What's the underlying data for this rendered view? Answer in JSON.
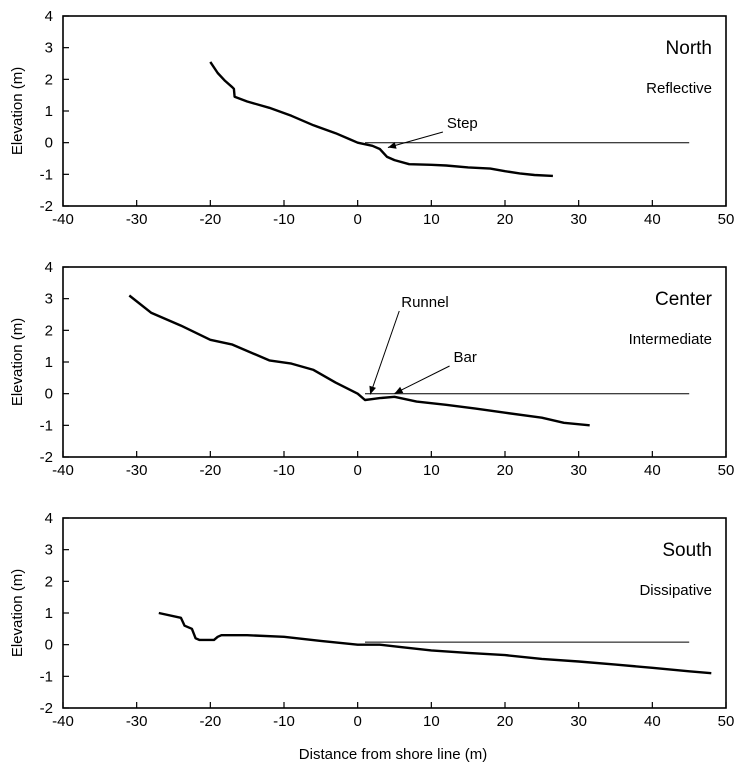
{
  "chart_data": [
    {
      "type": "line",
      "title": "North",
      "subtitle": "Reflective",
      "xlabel": "",
      "ylabel": "Elevation (m)",
      "xlim": [
        -40,
        50
      ],
      "ylim": [
        -2,
        4
      ],
      "xticks": [
        "-40",
        "-30",
        "-20",
        "-10",
        "0",
        "10",
        "20",
        "30",
        "40",
        "50"
      ],
      "yticks": [
        "-2",
        "-1",
        "0",
        "1",
        "2",
        "3",
        "4"
      ],
      "grid": false,
      "series": [
        {
          "role": "profile",
          "x": [
            -20,
            -19,
            -18,
            -17,
            -16.8,
            -16.7,
            -15,
            -12,
            -9,
            -6,
            -3,
            -1,
            0,
            2,
            3,
            4,
            5,
            7,
            10,
            12,
            15,
            18,
            20,
            22,
            24,
            26.5
          ],
          "y": [
            2.55,
            2.2,
            1.95,
            1.75,
            1.7,
            1.45,
            1.3,
            1.1,
            0.85,
            0.55,
            0.3,
            0.1,
            0.0,
            -0.1,
            -0.2,
            -0.45,
            -0.55,
            -0.68,
            -0.7,
            -0.72,
            -0.78,
            -0.82,
            -0.9,
            -0.97,
            -1.02,
            -1.05
          ]
        },
        {
          "role": "shoreline",
          "x": [
            1,
            45
          ],
          "y": [
            0,
            0
          ]
        }
      ],
      "annotations": [
        {
          "text": "Step",
          "at": [
            3.7,
            -0.28
          ]
        }
      ]
    },
    {
      "type": "line",
      "title": "Center",
      "subtitle": "Intermediate",
      "xlabel": "",
      "ylabel": "Elevation (m)",
      "xlim": [
        -40,
        50
      ],
      "ylim": [
        -2,
        4
      ],
      "xticks": [
        "-40",
        "-30",
        "-20",
        "-10",
        "0",
        "10",
        "20",
        "30",
        "40",
        "50"
      ],
      "yticks": [
        "-2",
        "-1",
        "0",
        "1",
        "2",
        "3",
        "4"
      ],
      "grid": false,
      "series": [
        {
          "role": "profile",
          "x": [
            -31,
            -28,
            -24,
            -20,
            -17,
            -12,
            -9,
            -6,
            -3,
            0,
            1,
            2,
            3,
            5,
            8,
            12,
            16,
            20,
            25,
            28,
            31.5
          ],
          "y": [
            3.1,
            2.55,
            2.15,
            1.7,
            1.55,
            1.05,
            0.95,
            0.75,
            0.35,
            0.0,
            -0.2,
            -0.17,
            -0.14,
            -0.1,
            -0.25,
            -0.35,
            -0.47,
            -0.6,
            -0.76,
            -0.92,
            -1.0
          ]
        },
        {
          "role": "shoreline",
          "x": [
            1,
            45
          ],
          "y": [
            0,
            0
          ]
        }
      ],
      "annotations": [
        {
          "text": "Runnel",
          "at": [
            1.3,
            -0.15
          ]
        },
        {
          "text": "Bar",
          "at": [
            4.6,
            -0.12
          ]
        }
      ]
    },
    {
      "type": "line",
      "title": "South",
      "subtitle": "Dissipative",
      "xlabel": "Distance from shore line (m)",
      "ylabel": "Elevation (m)",
      "xlim": [
        -40,
        50
      ],
      "ylim": [
        -2,
        4
      ],
      "xticks": [
        "-40",
        "-30",
        "-20",
        "-10",
        "0",
        "10",
        "20",
        "30",
        "40",
        "50"
      ],
      "yticks": [
        "-2",
        "-1",
        "0",
        "1",
        "2",
        "3",
        "4"
      ],
      "grid": false,
      "series": [
        {
          "role": "profile",
          "x": [
            -27,
            -24,
            -23.5,
            -22.5,
            -22,
            -21.5,
            -19.5,
            -19,
            -18.5,
            -15,
            -10,
            -5,
            0,
            3,
            6,
            10,
            15,
            20,
            25,
            30,
            35,
            40,
            45,
            48
          ],
          "y": [
            1.0,
            0.85,
            0.6,
            0.5,
            0.2,
            0.15,
            0.15,
            0.25,
            0.3,
            0.3,
            0.25,
            0.12,
            0.0,
            0.0,
            -0.08,
            -0.18,
            -0.26,
            -0.33,
            -0.45,
            -0.53,
            -0.63,
            -0.73,
            -0.84,
            -0.9
          ]
        },
        {
          "role": "shoreline",
          "x": [
            1,
            45
          ],
          "y": [
            0.08,
            0.08
          ]
        }
      ],
      "annotations": []
    }
  ]
}
